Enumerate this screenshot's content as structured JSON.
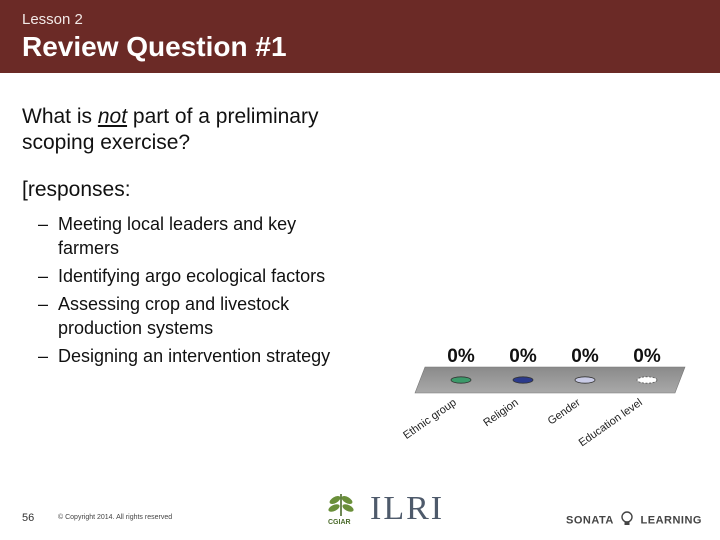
{
  "header": {
    "lesson": "Lesson 2",
    "title": "Review Question #1"
  },
  "question": {
    "prefix": "What is ",
    "emphasis": "not",
    "suffix": " part of a preliminary scoping exercise?"
  },
  "responses": {
    "heading": "[responses:",
    "items": [
      "Meeting local leaders and key farmers",
      "Identifying argo ecological factors",
      "Assessing crop and livestock production systems",
      "Designing an intervention strategy"
    ]
  },
  "chart_data": {
    "type": "bar",
    "categories": [
      "Ethnic group",
      "Religion",
      "Gender",
      "Education level"
    ],
    "values": [
      0,
      0,
      0,
      0
    ],
    "value_labels": [
      "0%",
      "0%",
      "0%",
      "0%"
    ],
    "colors": [
      "#3c9a6a",
      "#2b3a8c",
      "#c9cbe6",
      "#ffffff"
    ],
    "ylim": [
      0,
      100
    ]
  },
  "footer": {
    "page_number": "56",
    "copyright": "© Copyright 2014. All rights reserved",
    "cgiar_label": "CGIAR",
    "ilri_logo": "ILRI",
    "sonata_left": "SONATA",
    "sonata_right": "LEARNING"
  }
}
